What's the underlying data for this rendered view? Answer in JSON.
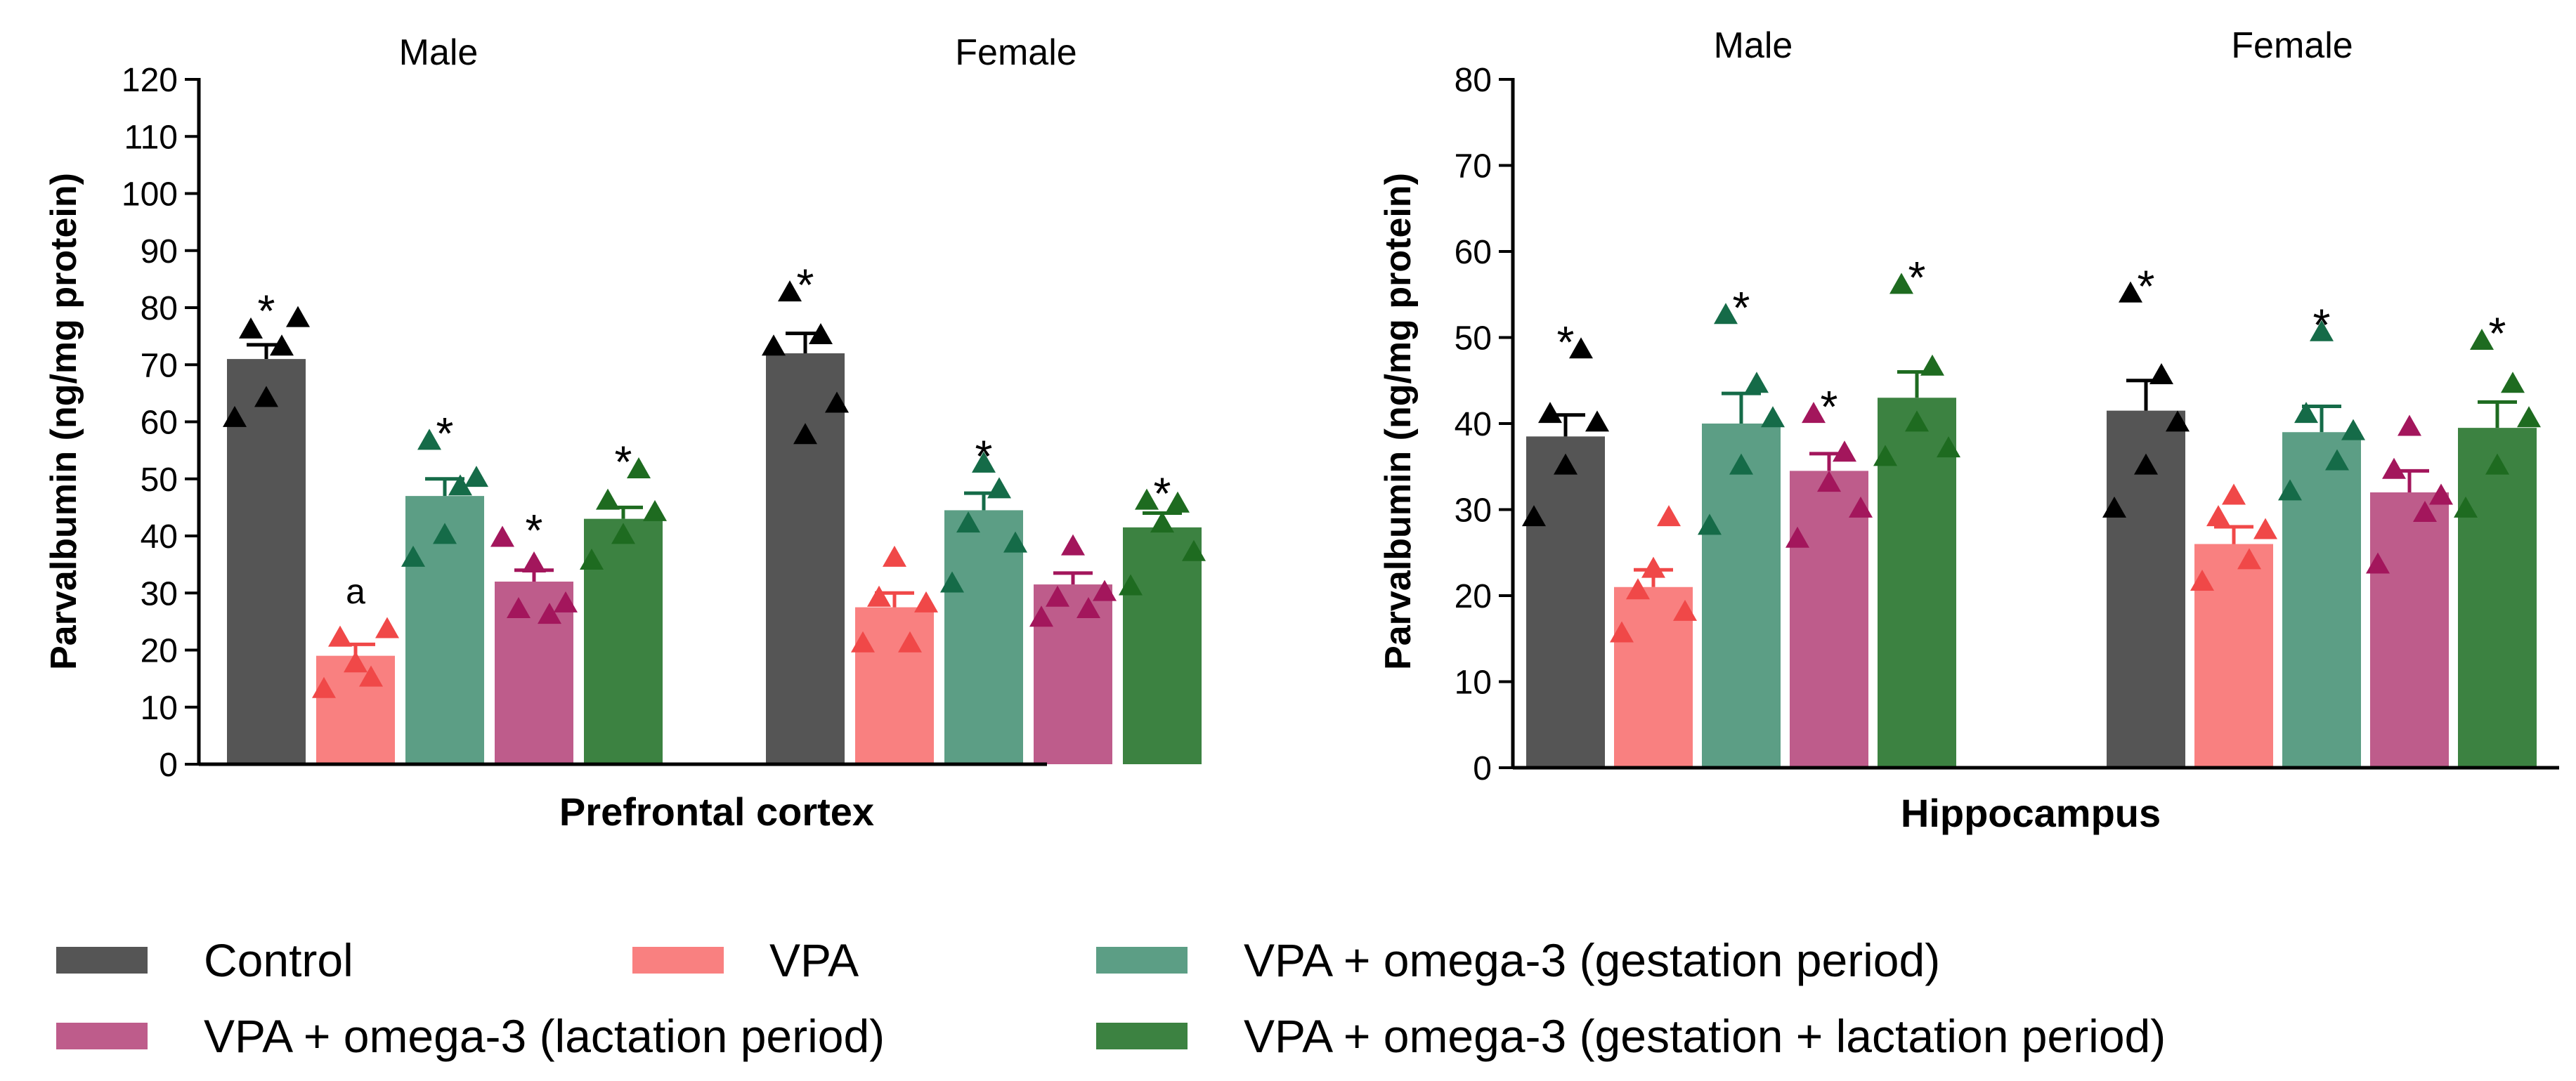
{
  "series_colors": {
    "Control": "#555555",
    "VPA": "#F98080",
    "VPA + omega-3 (gestation period)": "#5C9E85",
    "VPA + omega-3 (lactation period)": "#BE5C8B",
    "VPA + omega-3 (gestation + lactation period)": "#3C8241"
  },
  "marker_colors": {
    "Control": "#000000",
    "VPA": "#F04848",
    "VPA + omega-3 (gestation period)": "#156B48",
    "VPA + omega-3 (lactation period)": "#A3165C",
    "VPA + omega-3 (gestation + lactation period)": "#1E6B20"
  },
  "legend": [
    "Control",
    "VPA",
    "VPA + omega-3 (gestation period)",
    "VPA + omega-3 (lactation period)",
    "VPA + omega-3 (gestation + lactation period)"
  ],
  "chart_data": [
    {
      "type": "bar",
      "title": "Prefrontal cortex",
      "ylabel": "Parvalbumin (ng/mg protein)",
      "ylim": [
        0,
        120
      ],
      "yticks": [
        0,
        10,
        20,
        30,
        40,
        50,
        60,
        70,
        80,
        90,
        100,
        110,
        120
      ],
      "categories": [
        "Male",
        "Female"
      ],
      "series": [
        {
          "name": "Control",
          "values": [
            71,
            72
          ],
          "sem": [
            2.5,
            3.5
          ],
          "points": [
            [
              60.5,
              76,
              64,
              73,
              78
            ],
            [
              73,
              82.5,
              57.5,
              75,
              63
            ]
          ],
          "annotation": [
            "*",
            "*"
          ]
        },
        {
          "name": "VPA",
          "values": [
            19,
            27.5
          ],
          "sem": [
            2,
            2.5
          ],
          "points": [
            [
              13,
              22,
              17.5,
              15,
              23.5
            ],
            [
              21,
              29,
              36,
              21,
              28
            ]
          ],
          "annotation": [
            "a",
            ""
          ]
        },
        {
          "name": "VPA + omega-3 (gestation period)",
          "values": [
            47,
            44.5
          ],
          "sem": [
            3,
            3
          ],
          "points": [
            [
              36,
              56.5,
              40,
              48.5,
              50
            ],
            [
              31.5,
              42,
              52.5,
              48,
              38.5
            ]
          ],
          "annotation": [
            "*",
            "*"
          ]
        },
        {
          "name": "VPA + omega-3 (lactation period)",
          "values": [
            32,
            31.5
          ],
          "sem": [
            2,
            2
          ],
          "points": [
            [
              39.5,
              27,
              35,
              26,
              28
            ],
            [
              25.5,
              29,
              38,
              27,
              30
            ]
          ],
          "annotation": [
            "*",
            ""
          ]
        },
        {
          "name": "VPA + omega-3 (gestation + lactation period)",
          "values": [
            43,
            41.5
          ],
          "sem": [
            2,
            2.5
          ],
          "points": [
            [
              35.5,
              46,
              40,
              51.5,
              44
            ],
            [
              31,
              46,
              42,
              45.5,
              37
            ]
          ],
          "annotation": [
            "*",
            "*"
          ]
        }
      ]
    },
    {
      "type": "bar",
      "title": "Hippocampus",
      "ylabel": "Parvalbumin (ng/mg protein)",
      "ylim": [
        0,
        80
      ],
      "yticks": [
        0,
        10,
        20,
        30,
        40,
        50,
        60,
        70,
        80
      ],
      "categories": [
        "Male",
        "Female"
      ],
      "series": [
        {
          "name": "Control",
          "values": [
            38.5,
            41.5
          ],
          "sem": [
            2.5,
            3.5
          ],
          "points": [
            [
              29,
              41,
              35,
              48.5,
              40
            ],
            [
              30,
              55,
              35,
              45.5,
              40
            ]
          ],
          "annotation": [
            "*",
            "*"
          ]
        },
        {
          "name": "VPA",
          "values": [
            21,
            26
          ],
          "sem": [
            2,
            2
          ],
          "points": [
            [
              15.5,
              20.5,
              23,
              29,
              18
            ],
            [
              21.5,
              29,
              31.5,
              24,
              27.5
            ]
          ],
          "annotation": [
            "",
            ""
          ]
        },
        {
          "name": "VPA + omega-3 (gestation period)",
          "values": [
            40,
            39
          ],
          "sem": [
            3.5,
            3
          ],
          "points": [
            [
              28,
              52.5,
              35,
              44.5,
              40.5
            ],
            [
              32,
              41,
              50.5,
              35.5,
              39
            ]
          ],
          "annotation": [
            "*",
            "*"
          ]
        },
        {
          "name": "VPA + omega-3 (lactation period)",
          "values": [
            34.5,
            32
          ],
          "sem": [
            2,
            2.5
          ],
          "points": [
            [
              26.5,
              41,
              33,
              36.5,
              30
            ],
            [
              23.5,
              34.5,
              39.5,
              29.5,
              31.5
            ]
          ],
          "annotation": [
            "*",
            ""
          ]
        },
        {
          "name": "VPA + omega-3 (gestation + lactation period)",
          "values": [
            43,
            39.5
          ],
          "sem": [
            3,
            3
          ],
          "points": [
            [
              36,
              56,
              40,
              46.5,
              37
            ],
            [
              30,
              49.5,
              35,
              44.5,
              40.5
            ]
          ],
          "annotation": [
            "*",
            "*"
          ]
        }
      ]
    }
  ]
}
